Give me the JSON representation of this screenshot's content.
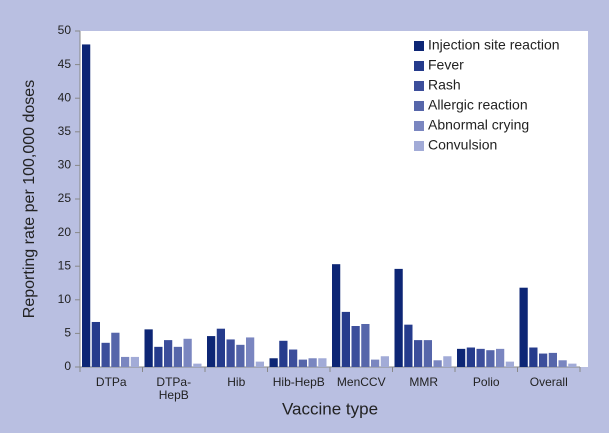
{
  "chart_data": {
    "type": "bar",
    "xlabel": "Vaccine type",
    "ylabel": "Reporting rate per 100,000 doses",
    "categories": [
      "DTPa",
      "DTPa-HepB",
      "Hib",
      "Hib-HepB",
      "MenCCV",
      "MMR",
      "Polio",
      "Overall"
    ],
    "series": [
      {
        "name": "Injection site reaction",
        "color": "#0d2675",
        "values": [
          48,
          5.6,
          4.6,
          1.3,
          15.3,
          14.6,
          2.7,
          11.8
        ]
      },
      {
        "name": "Fever",
        "color": "#253b8c",
        "values": [
          6.7,
          3.0,
          5.7,
          3.9,
          8.2,
          6.3,
          2.9,
          2.9
        ]
      },
      {
        "name": "Rash",
        "color": "#3c4e9b",
        "values": [
          3.6,
          4.0,
          4.1,
          2.6,
          6.1,
          4.0,
          2.7,
          2.0
        ]
      },
      {
        "name": "Allergic reaction",
        "color": "#5666aa",
        "values": [
          5.1,
          3.0,
          3.3,
          1.1,
          6.4,
          4.0,
          2.5,
          2.1
        ]
      },
      {
        "name": "Abnormal crying",
        "color": "#7a86c0",
        "values": [
          1.5,
          4.2,
          4.4,
          1.3,
          1.1,
          1.0,
          2.7,
          1.0
        ]
      },
      {
        "name": "Convulsion",
        "color": "#a2abd7",
        "values": [
          1.5,
          0.5,
          0.8,
          1.3,
          1.6,
          1.6,
          0.8,
          0.5
        ]
      }
    ],
    "ylim": [
      0,
      50
    ],
    "yticks": [
      0,
      5,
      10,
      15,
      20,
      25,
      30,
      35,
      40,
      45,
      50
    ],
    "legend": "upper right"
  }
}
